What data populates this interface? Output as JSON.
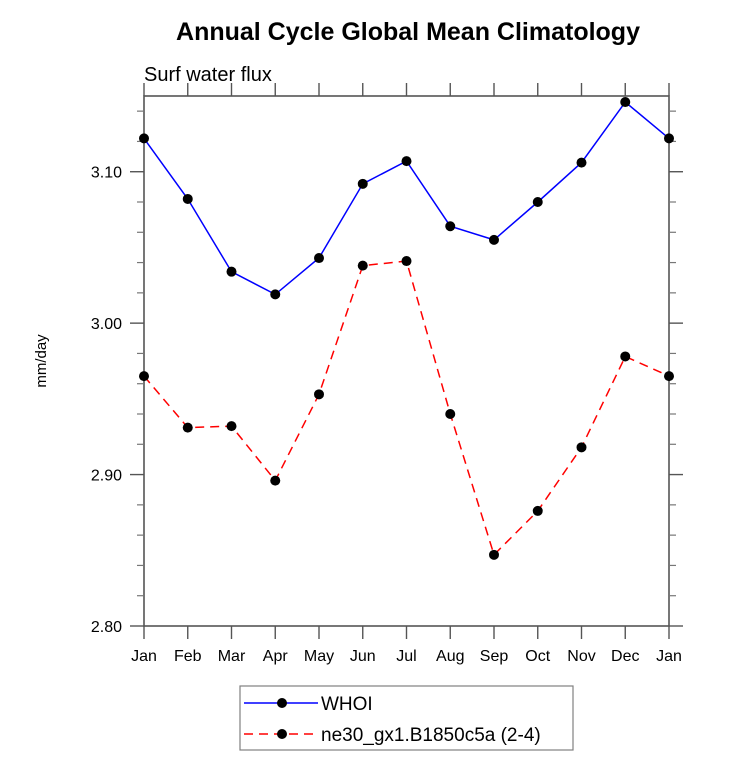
{
  "chart_data": {
    "type": "line",
    "title": "Annual Cycle Global Mean Climatology",
    "subtitle": "Surf water flux",
    "xlabel": "",
    "ylabel": "mm/day",
    "categories": [
      "Jan",
      "Feb",
      "Mar",
      "Apr",
      "May",
      "Jun",
      "Jul",
      "Aug",
      "Sep",
      "Oct",
      "Nov",
      "Dec",
      "Jan"
    ],
    "ylim": [
      2.8,
      3.15
    ],
    "yticks": [
      2.8,
      2.9,
      3.0,
      3.1
    ],
    "ytick_labels": [
      "2.80",
      "2.90",
      "3.00",
      "3.10"
    ],
    "yminor_step": 0.02,
    "grid": false,
    "legend_position": "bottom-center",
    "series": [
      {
        "name": "WHOI",
        "color": "#0000ff",
        "line_style": "solid",
        "marker": "filled-circle",
        "values": [
          3.122,
          3.082,
          3.034,
          3.019,
          3.043,
          3.092,
          3.107,
          3.064,
          3.055,
          3.08,
          3.106,
          3.146,
          3.122
        ]
      },
      {
        "name": "ne30_gx1.B1850c5a (2-4)",
        "color": "#ff0000",
        "line_style": "dashed",
        "marker": "filled-circle",
        "values": [
          2.965,
          2.931,
          2.932,
          2.896,
          2.953,
          3.038,
          3.041,
          2.94,
          2.847,
          2.876,
          2.918,
          2.978,
          2.965
        ]
      }
    ]
  }
}
